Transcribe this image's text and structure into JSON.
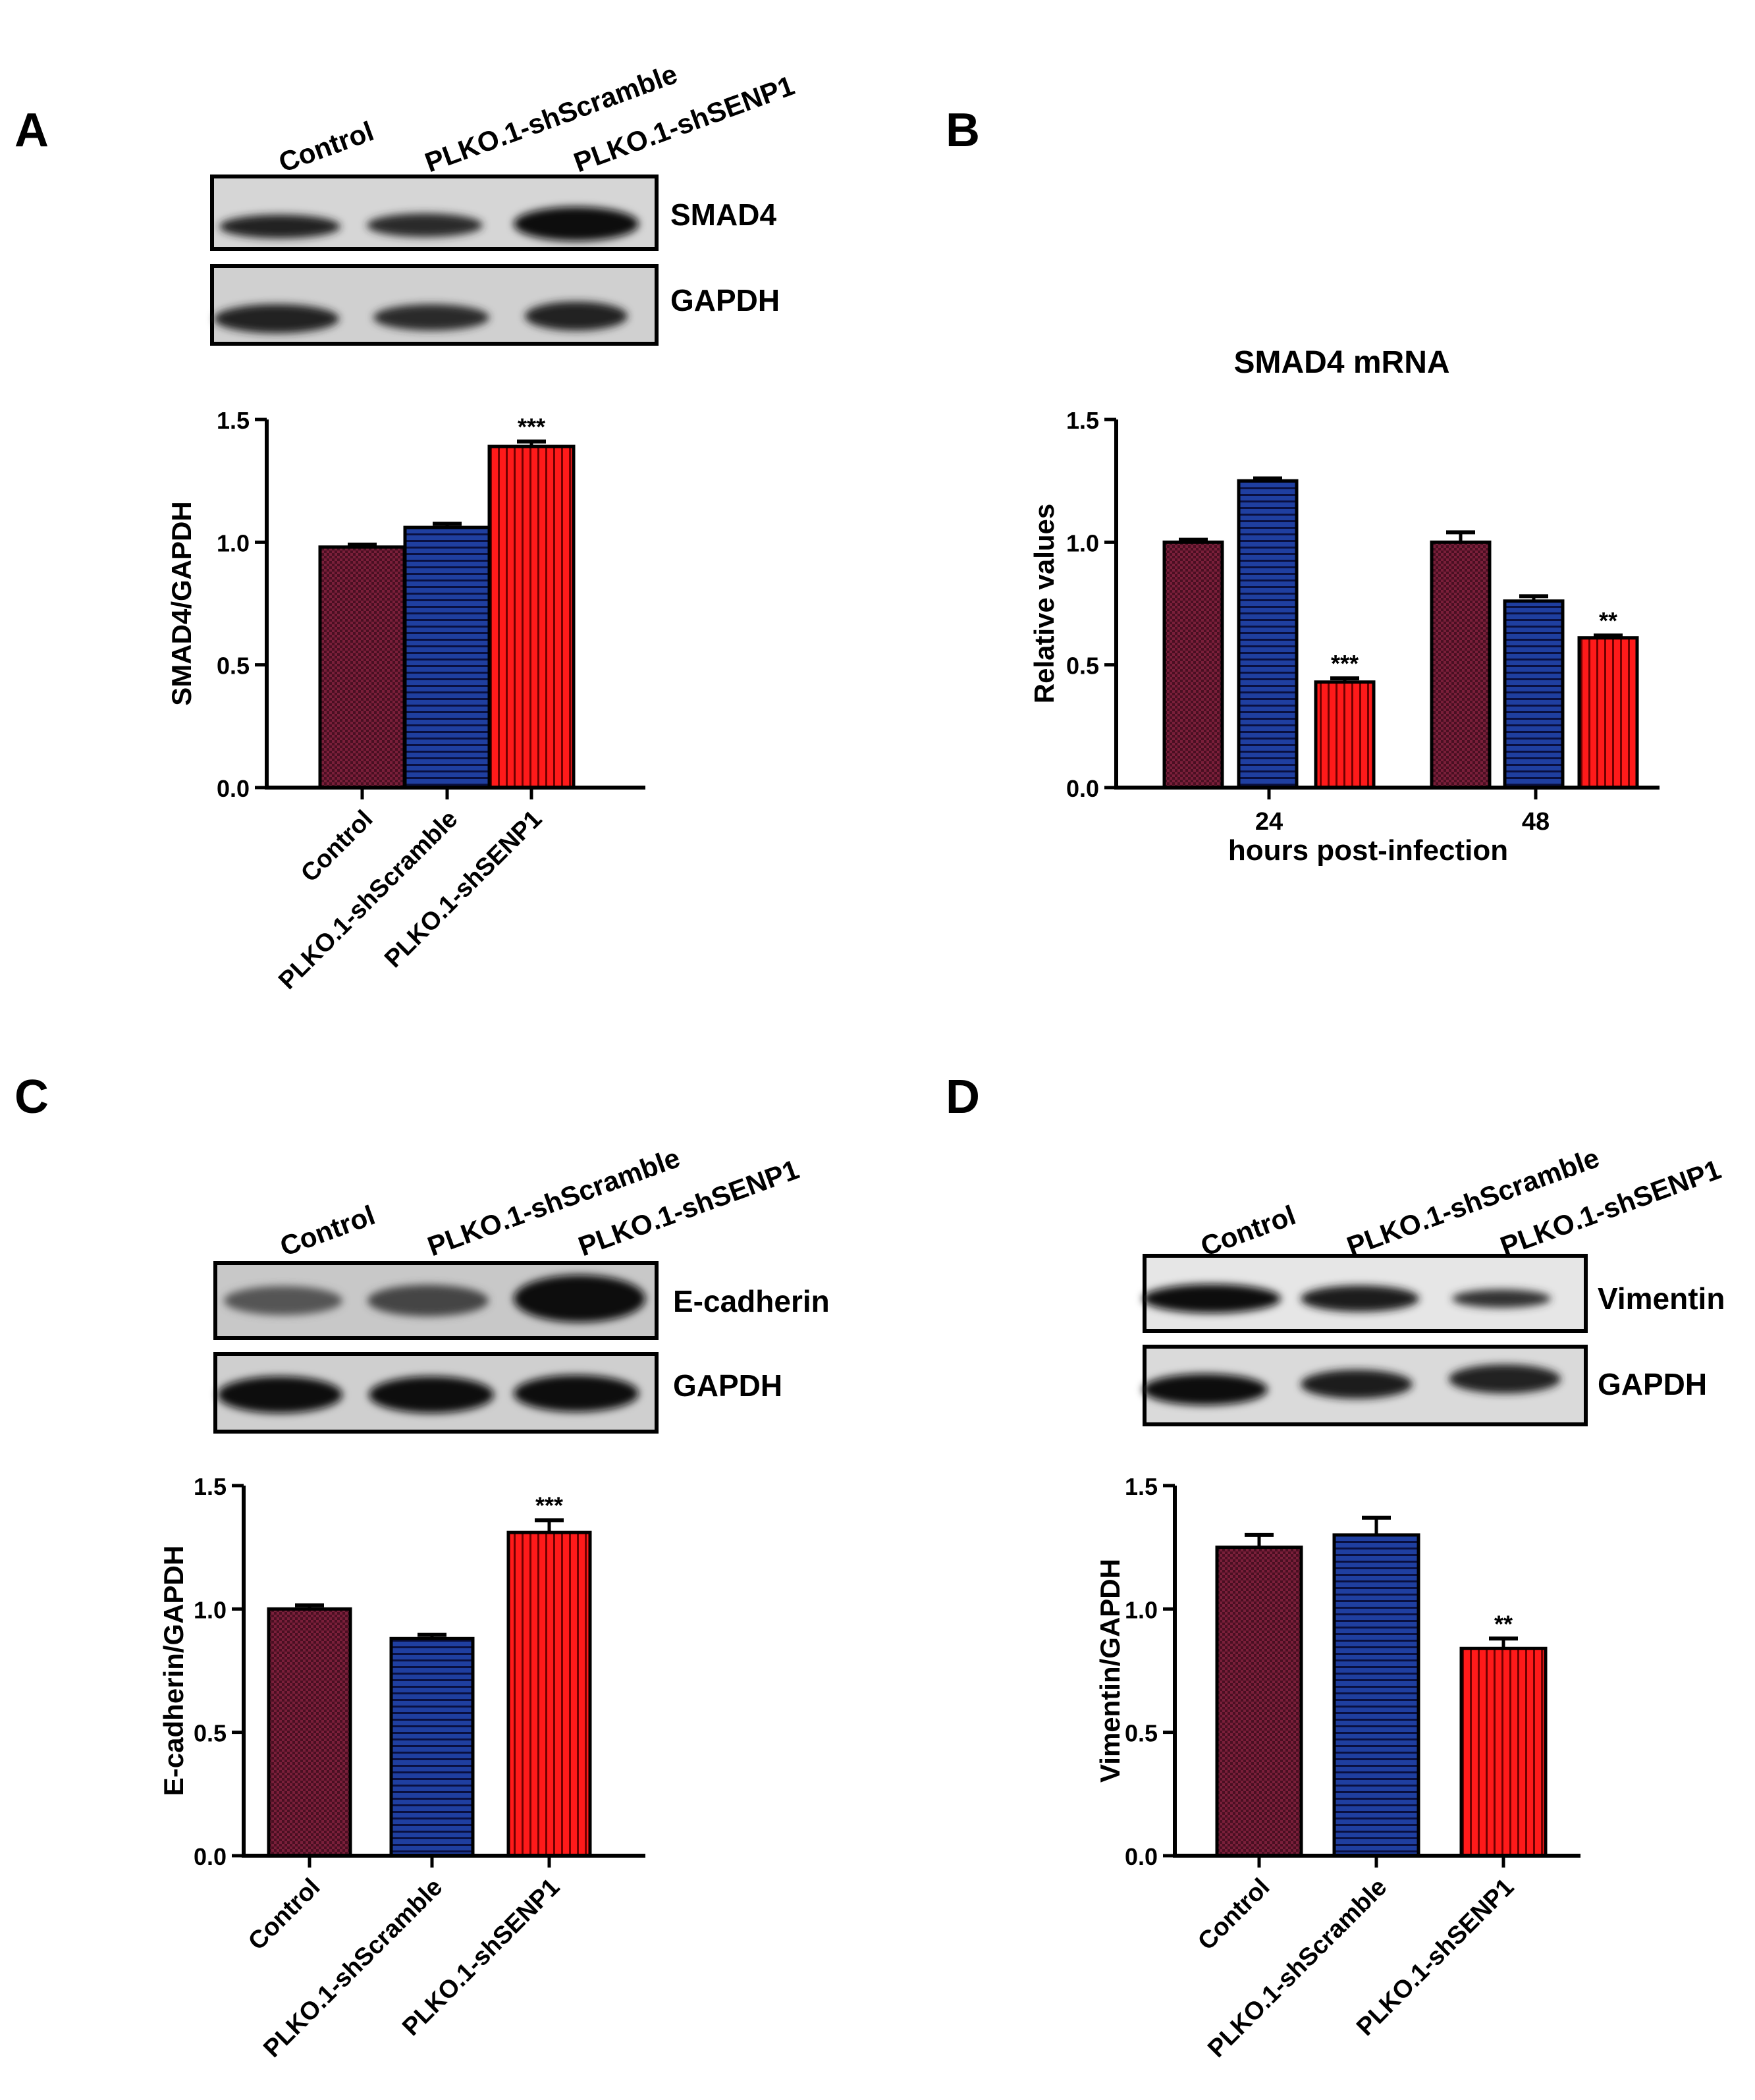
{
  "colors": {
    "control": "#7a1f3a",
    "control_hatch": "#3a0a1a",
    "scramble": "#1f3fa0",
    "scramble_hatch": "#0a1040",
    "senp1": "#ff1a1a",
    "senp1_hatch": "#700000"
  },
  "panels": {
    "A": {
      "letter": "A",
      "lanes": [
        "Control",
        "PLKO.1-shScramble",
        "PLKO.1-shSENP1"
      ],
      "blots": [
        "SMAD4",
        "GAPDH"
      ]
    },
    "B": {
      "letter": "B"
    },
    "C": {
      "letter": "C",
      "lanes": [
        "Control",
        "PLKO.1-shScramble",
        "PLKO.1-shSENP1"
      ],
      "blots": [
        "E-cadherin",
        "GAPDH"
      ]
    },
    "D": {
      "letter": "D",
      "lanes": [
        "Control",
        "PLKO.1-shScramble",
        "PLKO.1-shSENP1"
      ],
      "blots": [
        "Vimentin",
        "GAPDH"
      ]
    }
  },
  "chart_data": [
    {
      "panel": "A",
      "type": "bar",
      "title": "",
      "xlabel": "",
      "ylabel": "SMAD4/GAPDH",
      "ylim": [
        0,
        1.5
      ],
      "yticks": [
        "0.0",
        "0.5",
        "1.0",
        "1.5"
      ],
      "categories": [
        "Control",
        "PLKO.1-shScramble",
        "PLKO.1-shSENP1"
      ],
      "values": [
        0.98,
        1.06,
        1.39
      ],
      "errors": [
        0.01,
        0.015,
        0.02
      ],
      "annotations": [
        "",
        "",
        "***"
      ]
    },
    {
      "panel": "B",
      "type": "bar",
      "title": "SMAD4 mRNA",
      "xlabel": "hours post-infection",
      "ylabel": "Relative values",
      "ylim": [
        0,
        1.5
      ],
      "yticks": [
        "0.0",
        "0.5",
        "1.0",
        "1.5"
      ],
      "categories": [
        "24",
        "48"
      ],
      "series": [
        {
          "values": [
            1.0,
            1.0
          ],
          "errors": [
            0.01,
            0.04
          ],
          "annotations": [
            "",
            ""
          ]
        },
        {
          "values": [
            1.25,
            0.76
          ],
          "errors": [
            0.01,
            0.02
          ],
          "annotations": [
            "",
            ""
          ]
        },
        {
          "values": [
            0.43,
            0.61
          ],
          "errors": [
            0.015,
            0.01
          ],
          "annotations": [
            "***",
            "**"
          ]
        }
      ]
    },
    {
      "panel": "C",
      "type": "bar",
      "title": "",
      "xlabel": "",
      "ylabel": "E-cadherin/GAPDH",
      "ylim": [
        0,
        1.5
      ],
      "yticks": [
        "0.0",
        "0.5",
        "1.0",
        "1.5"
      ],
      "categories": [
        "Control",
        "PLKO.1-shScramble",
        "PLKO.1-shSENP1"
      ],
      "values": [
        1.0,
        0.88,
        1.31
      ],
      "errors": [
        0.015,
        0.015,
        0.05
      ],
      "annotations": [
        "",
        "",
        "***"
      ]
    },
    {
      "panel": "D",
      "type": "bar",
      "title": "",
      "xlabel": "",
      "ylabel": "Vimentin/GAPDH",
      "ylim": [
        0,
        1.5
      ],
      "yticks": [
        "0.0",
        "0.5",
        "1.0",
        "1.5"
      ],
      "categories": [
        "Control",
        "PLKO.1-shScramble",
        "PLKO.1-shSENP1"
      ],
      "values": [
        1.25,
        1.3,
        0.84
      ],
      "errors": [
        0.05,
        0.07,
        0.04
      ],
      "annotations": [
        "",
        "",
        "**"
      ]
    }
  ]
}
